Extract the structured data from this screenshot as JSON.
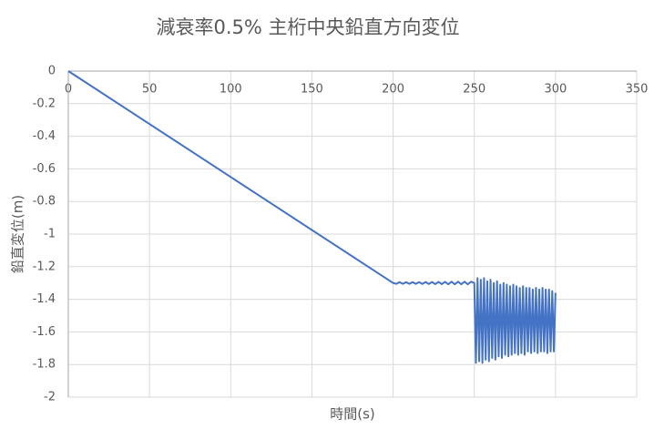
{
  "chart_data": {
    "type": "line",
    "title": "減衰率0.5% 主桁中央鉛直方向変位",
    "x_label": "時間(s)",
    "y_label": "鉛直変位(m)",
    "xlim": [
      0,
      350
    ],
    "xticks": [
      0,
      50,
      100,
      150,
      200,
      250,
      300,
      350
    ],
    "ylim": [
      -2,
      0
    ],
    "yticks": [
      0,
      -0.2,
      -0.4,
      -0.6,
      -0.8,
      -1,
      -1.2,
      -1.4,
      -1.6,
      -1.8,
      -2
    ],
    "grid": true,
    "series": [
      {
        "name": "鉛直変位",
        "color": "#4472c4",
        "x": [
          0,
          200,
          202,
          204,
          206,
          208,
          210,
          212,
          214,
          216,
          218,
          220,
          222,
          224,
          226,
          228,
          230,
          232,
          234,
          236,
          238,
          240,
          242,
          244,
          246,
          248,
          250,
          251,
          252,
          253,
          254,
          255,
          256,
          257,
          258,
          259,
          260,
          261,
          262,
          263,
          264,
          265,
          266,
          267,
          268,
          269,
          270,
          271,
          272,
          273,
          274,
          275,
          276,
          277,
          278,
          279,
          280,
          281,
          282,
          283,
          284,
          285,
          286,
          287,
          288,
          289,
          290,
          291,
          292,
          293,
          294,
          295,
          296,
          297,
          298,
          299,
          300
        ],
        "values": [
          0,
          -1.3,
          -1.305,
          -1.295,
          -1.305,
          -1.295,
          -1.305,
          -1.295,
          -1.305,
          -1.295,
          -1.306,
          -1.294,
          -1.306,
          -1.294,
          -1.307,
          -1.293,
          -1.307,
          -1.293,
          -1.308,
          -1.292,
          -1.308,
          -1.292,
          -1.308,
          -1.292,
          -1.308,
          -1.292,
          -1.3,
          -1.79,
          -1.27,
          -1.78,
          -1.28,
          -1.79,
          -1.27,
          -1.77,
          -1.29,
          -1.78,
          -1.28,
          -1.76,
          -1.3,
          -1.77,
          -1.29,
          -1.75,
          -1.31,
          -1.76,
          -1.3,
          -1.74,
          -1.31,
          -1.75,
          -1.32,
          -1.74,
          -1.31,
          -1.73,
          -1.32,
          -1.74,
          -1.33,
          -1.73,
          -1.32,
          -1.74,
          -1.33,
          -1.72,
          -1.33,
          -1.73,
          -1.34,
          -1.72,
          -1.33,
          -1.73,
          -1.34,
          -1.72,
          -1.33,
          -1.72,
          -1.34,
          -1.73,
          -1.34,
          -1.72,
          -1.35,
          -1.72,
          -1.36
        ]
      }
    ]
  }
}
